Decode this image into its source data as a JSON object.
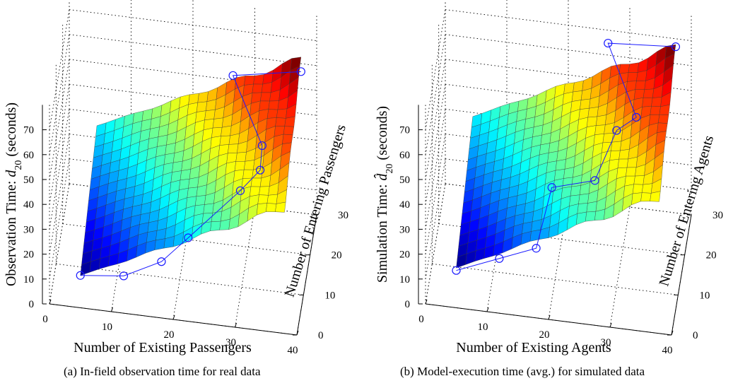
{
  "chart_data": [
    {
      "type": "surface",
      "caption": "(a) In-field observation time for real data",
      "xlabel": "Number of Existing Passengers",
      "ylabel": "Number of Entering Passengers",
      "zlabel": "Observation Time: d20 (seconds)",
      "zlabel_prefix": "Observation Time: ",
      "zlabel_symbol": "d",
      "zlabel_sub": "20",
      "zlabel_suffix": " (seconds)",
      "xticks": [
        "0",
        "10",
        "20",
        "30",
        "40"
      ],
      "yticks": [
        "0",
        "10",
        "20",
        "30"
      ],
      "zticks": [
        "0",
        "10",
        "20",
        "30",
        "40",
        "50",
        "60",
        "70"
      ],
      "xlim": [
        0,
        40
      ],
      "ylim": [
        0,
        30
      ],
      "zlim": [
        0,
        80
      ],
      "grid": true,
      "colormap": "jet",
      "surface_range": {
        "x": [
          5,
          38
        ],
        "y": [
          0,
          25
        ],
        "z": [
          13,
          70
        ]
      },
      "marker_series": {
        "name": "observed points",
        "points": [
          {
            "x": 5,
            "y": 0,
            "z": 13
          },
          {
            "x": 12,
            "y": 0,
            "z": 15
          },
          {
            "x": 18,
            "y": 1,
            "z": 21
          },
          {
            "x": 22,
            "y": 4,
            "z": 27
          },
          {
            "x": 30,
            "y": 8,
            "z": 42
          },
          {
            "x": 33,
            "y": 10,
            "z": 48
          },
          {
            "x": 33,
            "y": 13,
            "z": 53
          },
          {
            "x": 27,
            "y": 25,
            "z": 60
          },
          {
            "x": 38,
            "y": 25,
            "z": 65
          }
        ]
      }
    },
    {
      "type": "surface",
      "caption": "(b) Model-execution time (avg.) for simulated data",
      "xlabel": "Number of Existing Agents",
      "ylabel": "Number of Entering Agents",
      "zlabel": "Simulation Time: d̂20 (seconds)",
      "zlabel_prefix": "Simulation Time: ",
      "zlabel_symbol": "d̂",
      "zlabel_sub": "20",
      "zlabel_suffix": " (seconds)",
      "xticks": [
        "0",
        "10",
        "20",
        "30",
        "40"
      ],
      "yticks": [
        "0",
        "10",
        "20",
        "30"
      ],
      "zticks": [
        "0",
        "10",
        "20",
        "30",
        "40",
        "50",
        "60",
        "70"
      ],
      "xlim": [
        0,
        40
      ],
      "ylim": [
        0,
        30
      ],
      "zlim": [
        0,
        80
      ],
      "grid": true,
      "colormap": "jet",
      "surface_range": {
        "x": [
          5,
          38
        ],
        "y": [
          0,
          25
        ],
        "z": [
          16,
          75
        ]
      },
      "marker_series": {
        "name": "simulated points",
        "points": [
          {
            "x": 5,
            "y": 0,
            "z": 15
          },
          {
            "x": 12,
            "y": 0,
            "z": 22
          },
          {
            "x": 18,
            "y": 0,
            "z": 28
          },
          {
            "x": 20,
            "y": 5,
            "z": 45
          },
          {
            "x": 27,
            "y": 5,
            "z": 50
          },
          {
            "x": 30,
            "y": 10,
            "z": 63
          },
          {
            "x": 33,
            "y": 12,
            "z": 66
          },
          {
            "x": 27,
            "y": 25,
            "z": 73
          },
          {
            "x": 38,
            "y": 25,
            "z": 75
          }
        ]
      }
    }
  ]
}
